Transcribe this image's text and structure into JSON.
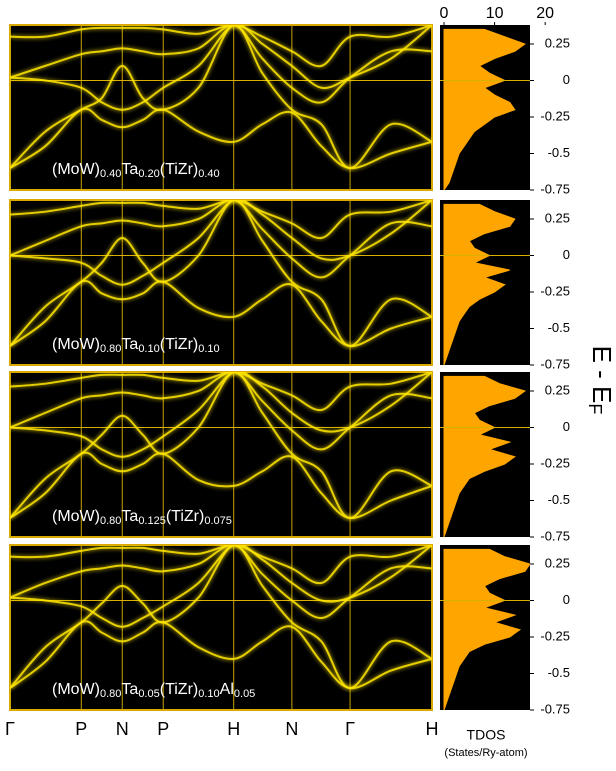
{
  "chart_data": {
    "type": "band-structure",
    "x": [
      0,
      0.43,
      0.87,
      1.12,
      1.37,
      1.62,
      1.87,
      2.3,
      2.73,
      3.08,
      3.44,
      3.8,
      4.15,
      4.65,
      5.15
    ],
    "xlim": [
      0,
      5.15
    ],
    "xticks": [
      {
        "value": 0,
        "label": "Γ"
      },
      {
        "value": 0.87,
        "label": "P"
      },
      {
        "value": 1.37,
        "label": "N"
      },
      {
        "value": 1.87,
        "label": "P"
      },
      {
        "value": 2.73,
        "label": "H"
      },
      {
        "value": 3.44,
        "label": "N"
      },
      {
        "value": 4.15,
        "label": "Γ"
      },
      {
        "value": 5.15,
        "label": "H"
      }
    ],
    "ylim": [
      -0.75,
      0.38
    ],
    "yticks": [
      0.25,
      0,
      -0.25,
      -0.5,
      -0.75
    ],
    "ylabel": "E - E",
    "ylabel_sub": "F",
    "band_color": "#ffe600",
    "dos_color": "#ffa500",
    "dos_label": "TDOS",
    "dos_unit": "(States/Ry-atom)",
    "dos_xlim": [
      0,
      17
    ],
    "dos_xticks": [
      0,
      10,
      20
    ],
    "dos_energies": [
      -0.75,
      -0.7,
      -0.65,
      -0.6,
      -0.55,
      -0.5,
      -0.45,
      -0.4,
      -0.35,
      -0.3,
      -0.25,
      -0.2,
      -0.15,
      -0.1,
      -0.05,
      0,
      0.05,
      0.1,
      0.15,
      0.2,
      0.25,
      0.3,
      0.35
    ],
    "panels": [
      {
        "label_parts": [
          {
            "text": "(MoW)",
            "sub": "0.40"
          },
          {
            "text": "Ta",
            "sub": "0.20"
          },
          {
            "text": "(TiZr)",
            "sub": "0.40"
          }
        ],
        "bands": [
          [
            -0.6,
            -0.45,
            -0.2,
            -0.27,
            -0.32,
            -0.27,
            -0.2,
            -0.35,
            -0.42,
            -0.3,
            -0.22,
            -0.45,
            -0.6,
            -0.5,
            -0.42
          ],
          [
            -0.6,
            -0.35,
            -0.2,
            -0.12,
            0.1,
            -0.12,
            -0.2,
            -0.05,
            0.38,
            0.05,
            -0.2,
            -0.3,
            -0.6,
            -0.3,
            -0.42
          ],
          [
            0.02,
            0.0,
            -0.05,
            -0.15,
            -0.2,
            -0.15,
            -0.05,
            0.1,
            0.38,
            0.25,
            0.1,
            -0.05,
            0.02,
            0.15,
            0.38
          ],
          [
            0.02,
            0.1,
            0.18,
            0.2,
            0.22,
            0.2,
            0.18,
            0.22,
            0.38,
            0.15,
            -0.05,
            -0.15,
            0.02,
            0.2,
            0.2
          ],
          [
            0.3,
            0.3,
            0.35,
            0.36,
            0.36,
            0.36,
            0.35,
            0.32,
            0.38,
            0.3,
            0.2,
            0.1,
            0.3,
            0.3,
            0.38
          ]
        ],
        "dos": [
          0,
          1,
          1.5,
          2,
          2.5,
          3,
          4,
          5,
          6,
          8,
          10,
          14,
          13,
          10,
          8,
          12,
          9,
          7,
          10,
          14,
          16,
          12,
          8
        ]
      },
      {
        "label_parts": [
          {
            "text": "(MoW)",
            "sub": "0.80"
          },
          {
            "text": "Ta",
            "sub": "0.10"
          },
          {
            "text": "(TiZr)",
            "sub": "0.10"
          }
        ],
        "bands": [
          [
            -0.62,
            -0.45,
            -0.18,
            -0.26,
            -0.3,
            -0.26,
            -0.18,
            -0.36,
            -0.42,
            -0.3,
            -0.2,
            -0.45,
            -0.62,
            -0.5,
            -0.42
          ],
          [
            -0.62,
            -0.35,
            -0.18,
            -0.05,
            0.12,
            -0.05,
            -0.18,
            0.0,
            0.38,
            0.1,
            -0.18,
            -0.3,
            -0.62,
            -0.3,
            -0.42
          ],
          [
            0.0,
            -0.02,
            -0.05,
            -0.14,
            -0.2,
            -0.14,
            -0.05,
            0.12,
            0.38,
            0.28,
            0.12,
            -0.02,
            0.0,
            0.15,
            0.38
          ],
          [
            0.0,
            0.1,
            0.2,
            0.22,
            0.24,
            0.22,
            0.2,
            0.25,
            0.38,
            0.18,
            -0.02,
            -0.15,
            0.0,
            0.22,
            0.2
          ],
          [
            0.28,
            0.3,
            0.34,
            0.36,
            0.36,
            0.36,
            0.34,
            0.32,
            0.38,
            0.3,
            0.22,
            0.12,
            0.28,
            0.3,
            0.38
          ]
        ],
        "dos": [
          0,
          0.5,
          1,
          1.5,
          2,
          2.5,
          3,
          4,
          5,
          7,
          10,
          12,
          8,
          13,
          6,
          9,
          6,
          5,
          8,
          13,
          14,
          10,
          7
        ]
      },
      {
        "label_parts": [
          {
            "text": "(MoW)",
            "sub": "0.80"
          },
          {
            "text": "Ta",
            "sub": "0.125"
          },
          {
            "text": "(TiZr)",
            "sub": "0.075"
          }
        ],
        "bands": [
          [
            -0.62,
            -0.45,
            -0.18,
            -0.25,
            -0.3,
            -0.25,
            -0.18,
            -0.36,
            -0.4,
            -0.3,
            -0.2,
            -0.45,
            -0.62,
            -0.5,
            -0.4
          ],
          [
            -0.62,
            -0.35,
            -0.18,
            -0.05,
            0.08,
            -0.05,
            -0.18,
            0.0,
            0.38,
            0.1,
            -0.18,
            -0.3,
            -0.62,
            -0.3,
            -0.4
          ],
          [
            0.0,
            -0.02,
            -0.06,
            -0.15,
            -0.2,
            -0.15,
            -0.06,
            0.12,
            0.38,
            0.28,
            0.1,
            -0.02,
            0.0,
            0.15,
            0.38
          ],
          [
            0.0,
            0.1,
            0.2,
            0.22,
            0.24,
            0.22,
            0.2,
            0.25,
            0.38,
            0.18,
            -0.02,
            -0.15,
            0.0,
            0.22,
            0.2
          ],
          [
            0.28,
            0.3,
            0.34,
            0.36,
            0.36,
            0.36,
            0.34,
            0.32,
            0.38,
            0.3,
            0.22,
            0.12,
            0.28,
            0.3,
            0.38
          ]
        ],
        "dos": [
          0,
          0.5,
          1,
          1.5,
          2,
          2.5,
          3,
          4,
          5,
          8,
          12,
          14,
          9,
          13,
          7,
          10,
          7,
          6,
          9,
          14,
          16,
          11,
          8
        ]
      },
      {
        "label_parts": [
          {
            "text": "(MoW)",
            "sub": "0.80"
          },
          {
            "text": "Ta",
            "sub": "0.05"
          },
          {
            "text": "(TiZr)",
            "sub": "0.10"
          },
          {
            "text": "Al",
            "sub": "0.05"
          }
        ],
        "bands": [
          [
            -0.6,
            -0.42,
            -0.15,
            -0.22,
            -0.28,
            -0.22,
            -0.15,
            -0.32,
            -0.4,
            -0.28,
            -0.18,
            -0.42,
            -0.6,
            -0.48,
            -0.4
          ],
          [
            -0.6,
            -0.32,
            -0.15,
            -0.02,
            0.1,
            -0.02,
            -0.15,
            0.02,
            0.38,
            0.1,
            -0.15,
            -0.28,
            -0.6,
            -0.28,
            -0.4
          ],
          [
            0.02,
            0.0,
            -0.04,
            -0.12,
            -0.18,
            -0.12,
            -0.04,
            0.12,
            0.38,
            0.28,
            0.12,
            0.0,
            0.02,
            0.16,
            0.38
          ],
          [
            0.02,
            0.12,
            0.2,
            0.22,
            0.24,
            0.22,
            0.2,
            0.25,
            0.38,
            0.18,
            0.0,
            -0.12,
            0.02,
            0.22,
            0.22
          ],
          [
            0.3,
            0.3,
            0.34,
            0.36,
            0.36,
            0.36,
            0.34,
            0.32,
            0.38,
            0.3,
            0.22,
            0.12,
            0.3,
            0.3,
            0.38
          ]
        ],
        "dos": [
          0,
          0.5,
          1,
          1.5,
          2,
          2.5,
          3,
          4,
          5,
          8,
          13,
          15,
          10,
          14,
          8,
          12,
          9,
          8,
          11,
          16,
          17,
          12,
          9
        ]
      }
    ]
  }
}
